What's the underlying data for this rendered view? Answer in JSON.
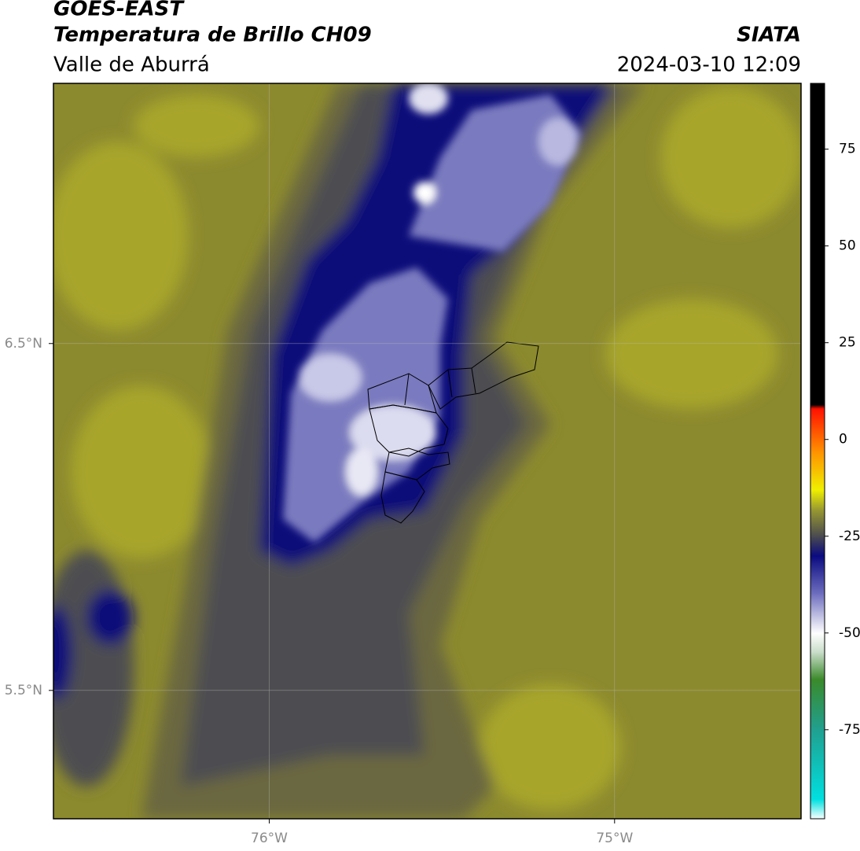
{
  "header": {
    "title": "GOES-EAST",
    "subtitle": "Temperatura de Brillo CH09",
    "region": "Valle de Aburrá",
    "source": "SIATA",
    "datetime": "2024-03-10 12:09"
  },
  "map": {
    "xlim": [
      -76.625,
      -74.46
    ],
    "ylim": [
      5.13,
      7.25
    ],
    "xticks": [
      {
        "value": -76,
        "label": "76°W"
      },
      {
        "value": -75,
        "label": "75°W"
      }
    ],
    "yticks": [
      {
        "value": 6.5,
        "label": "6.5°N"
      },
      {
        "value": 5.5,
        "label": "5.5°N"
      }
    ],
    "grid": true
  },
  "colorbar": {
    "lim": [
      -98,
      92
    ],
    "ticks": [
      75,
      50,
      25,
      0,
      -25,
      -50,
      -75
    ],
    "stops": [
      {
        "value": -98,
        "color": "#ffffff"
      },
      {
        "value": -93,
        "color": "#00e0e0"
      },
      {
        "value": -75,
        "color": "#20a090"
      },
      {
        "value": -62,
        "color": "#3a8a2a"
      },
      {
        "value": -55,
        "color": "#c8dcc8"
      },
      {
        "value": -50,
        "color": "#ffffff"
      },
      {
        "value": -40,
        "color": "#7070c0"
      },
      {
        "value": -30,
        "color": "#0a0a80"
      },
      {
        "value": -25,
        "color": "#4a4a50"
      },
      {
        "value": -18,
        "color": "#9a9a30"
      },
      {
        "value": -13,
        "color": "#f0f000"
      },
      {
        "value": -3,
        "color": "#ff9000"
      },
      {
        "value": 8,
        "color": "#ff1000"
      },
      {
        "value": 9,
        "color": "#000000"
      },
      {
        "value": 92,
        "color": "#000000"
      }
    ]
  }
}
